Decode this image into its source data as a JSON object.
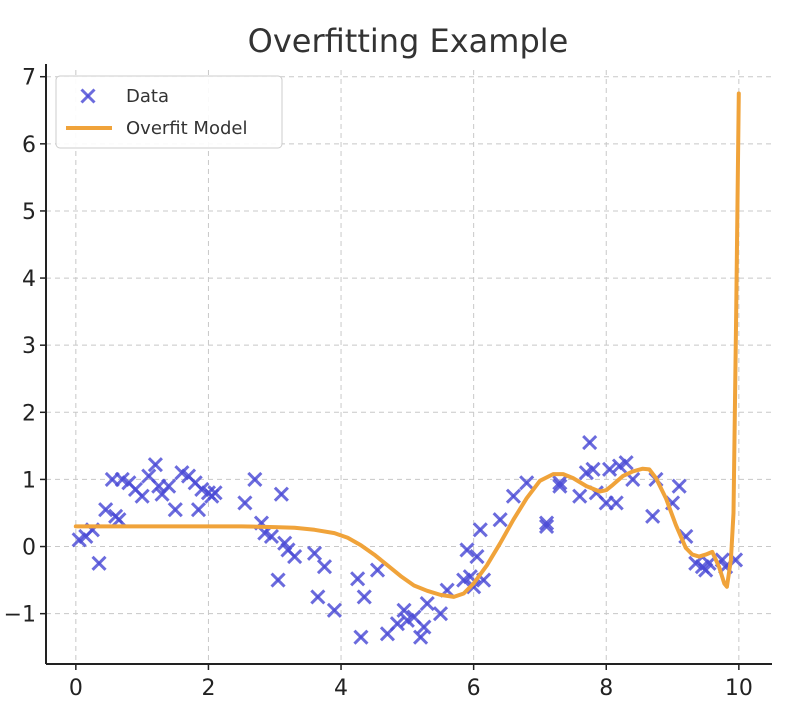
{
  "chart_data": {
    "type": "scatter",
    "title": "Overfitting Example",
    "xlabel": "",
    "ylabel": "",
    "xlim": [
      -0.45,
      10.5
    ],
    "ylim": [
      -1.75,
      7.1
    ],
    "x_ticks": [
      0,
      2,
      4,
      6,
      8,
      10
    ],
    "y_ticks": [
      -1,
      0,
      1,
      2,
      3,
      4,
      5,
      6,
      7
    ],
    "x_tick_labels": [
      "0",
      "2",
      "4",
      "6",
      "8",
      "10"
    ],
    "y_tick_labels": [
      "−1",
      "0",
      "1",
      "2",
      "3",
      "4",
      "5",
      "6",
      "7"
    ],
    "grid": true,
    "legend": "top-left",
    "series": [
      {
        "name": "Data",
        "kind": "scatter",
        "marker": "x",
        "color": "#4b4bd6",
        "x": [
          0.05,
          0.15,
          0.25,
          0.35,
          0.45,
          0.55,
          0.6,
          0.65,
          0.7,
          0.8,
          0.9,
          1.0,
          1.1,
          1.2,
          1.25,
          1.3,
          1.4,
          1.5,
          1.6,
          1.7,
          1.8,
          1.85,
          1.9,
          2.0,
          2.05,
          2.1,
          2.55,
          2.7,
          2.8,
          2.85,
          2.95,
          3.05,
          3.1,
          3.15,
          3.2,
          3.3,
          3.6,
          3.65,
          3.75,
          3.9,
          4.25,
          4.3,
          4.35,
          4.55,
          4.7,
          4.85,
          4.95,
          5.0,
          5.1,
          5.2,
          5.25,
          5.3,
          5.5,
          5.6,
          5.85,
          5.9,
          5.95,
          6.0,
          6.05,
          6.1,
          6.15,
          6.4,
          6.6,
          6.8,
          7.1,
          7.1,
          7.3,
          7.3,
          7.6,
          7.7,
          7.75,
          7.8,
          7.85,
          8.0,
          8.05,
          8.15,
          8.2,
          8.3,
          8.4,
          8.7,
          8.75,
          9.0,
          9.1,
          9.2,
          9.35,
          9.45,
          9.5,
          9.55,
          9.75,
          9.8,
          9.95
        ],
        "y": [
          0.1,
          0.15,
          0.25,
          -0.25,
          0.55,
          1.0,
          0.45,
          0.4,
          1.0,
          0.95,
          0.85,
          0.75,
          1.05,
          1.22,
          0.9,
          0.78,
          0.9,
          0.55,
          1.1,
          1.05,
          0.95,
          0.55,
          0.85,
          0.8,
          0.75,
          0.8,
          0.65,
          1.0,
          0.35,
          0.2,
          0.15,
          -0.5,
          0.78,
          0.05,
          -0.05,
          -0.15,
          -0.1,
          -0.75,
          -0.3,
          -0.95,
          -0.48,
          -1.35,
          -0.75,
          -0.35,
          -1.3,
          -1.15,
          -0.95,
          -1.1,
          -1.05,
          -1.35,
          -1.2,
          -0.85,
          -1.0,
          -0.65,
          -0.5,
          -0.05,
          -0.45,
          -0.6,
          -0.15,
          0.25,
          -0.5,
          0.4,
          0.75,
          0.95,
          0.35,
          0.3,
          0.95,
          0.9,
          0.75,
          1.1,
          1.55,
          1.15,
          0.8,
          0.65,
          1.15,
          0.65,
          1.2,
          1.25,
          1.0,
          0.45,
          1.0,
          0.65,
          0.9,
          0.15,
          -0.25,
          -0.3,
          -0.35,
          -0.25,
          -0.2,
          -0.3,
          -0.2
        ]
      },
      {
        "name": "Overfit Model",
        "kind": "line",
        "color": "#f0a33a",
        "x": [
          0.0,
          0.5,
          1.0,
          1.5,
          2.0,
          2.5,
          3.0,
          3.3,
          3.6,
          3.9,
          4.1,
          4.3,
          4.5,
          4.7,
          4.9,
          5.1,
          5.3,
          5.5,
          5.7,
          5.85,
          6.0,
          6.2,
          6.4,
          6.6,
          6.8,
          7.0,
          7.2,
          7.35,
          7.5,
          7.7,
          7.9,
          8.0,
          8.1,
          8.25,
          8.4,
          8.55,
          8.65,
          8.75,
          8.9,
          9.05,
          9.2,
          9.3,
          9.4,
          9.5,
          9.6,
          9.7,
          9.78,
          9.82,
          9.88,
          9.92,
          9.96,
          10.0
        ],
        "y": [
          0.3,
          0.3,
          0.3,
          0.3,
          0.3,
          0.3,
          0.29,
          0.28,
          0.25,
          0.2,
          0.13,
          0.02,
          -0.12,
          -0.28,
          -0.44,
          -0.58,
          -0.66,
          -0.72,
          -0.75,
          -0.7,
          -0.55,
          -0.28,
          0.05,
          0.4,
          0.72,
          0.98,
          1.08,
          1.08,
          1.02,
          0.9,
          0.82,
          0.84,
          0.92,
          1.05,
          1.12,
          1.16,
          1.15,
          1.02,
          0.72,
          0.32,
          -0.02,
          -0.12,
          -0.15,
          -0.12,
          -0.08,
          -0.3,
          -0.55,
          -0.6,
          -0.2,
          0.5,
          3.5,
          6.75
        ]
      }
    ]
  }
}
